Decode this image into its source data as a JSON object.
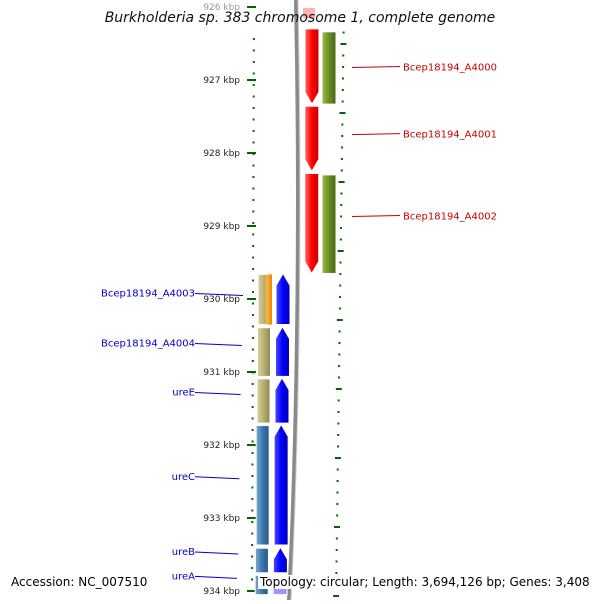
{
  "title": "Burkholderia sp. 383 chromosome 1, complete genome",
  "footer": {
    "accession": "Accession: NC_007510",
    "summary": "Topology: circular; Length: 3,694,126 bp; Genes: 3,408"
  },
  "axis": {
    "ticks": [
      {
        "label": "926 kbp",
        "kbp": 926
      },
      {
        "label": "927 kbp",
        "kbp": 927
      },
      {
        "label": "928 kbp",
        "kbp": 928
      },
      {
        "label": "929 kbp",
        "kbp": 929
      },
      {
        "label": "930 kbp",
        "kbp": 930
      },
      {
        "label": "931 kbp",
        "kbp": 931
      },
      {
        "label": "932 kbp",
        "kbp": 932
      },
      {
        "label": "933 kbp",
        "kbp": 933
      },
      {
        "label": "934 kbp",
        "kbp": 934
      }
    ]
  },
  "genes_forward": [
    {
      "label": "Bcep18194_A4000",
      "start_kbp": 926.3,
      "end_kbp": 927.33
    },
    {
      "label": "Bcep18194_A4001",
      "start_kbp": 927.36,
      "end_kbp": 928.25
    },
    {
      "label": "Bcep18194_A4002",
      "start_kbp": 928.28,
      "end_kbp": 929.65
    }
  ],
  "genes_reverse": [
    {
      "label": "Bcep18194_A4003",
      "start_kbp": 929.65,
      "end_kbp": 930.35
    },
    {
      "label": "Bcep18194_A4004",
      "start_kbp": 930.38,
      "end_kbp": 931.06
    },
    {
      "label": "ureE",
      "start_kbp": 931.08,
      "end_kbp": 931.7
    },
    {
      "label": "ureC",
      "start_kbp": 931.72,
      "end_kbp": 933.37
    },
    {
      "label": "ureB",
      "start_kbp": 933.4,
      "end_kbp": 933.75
    },
    {
      "label": "ureA",
      "start_kbp": 933.77,
      "end_kbp": 934.05
    }
  ],
  "colors": {
    "forward_gene": "#ff0000",
    "forward_feature": "#6b8e23",
    "reverse_gene": "#0000ff",
    "forward_label": "#cc0000",
    "reverse_label": "#0000cc",
    "axis_tick": "#006400"
  }
}
